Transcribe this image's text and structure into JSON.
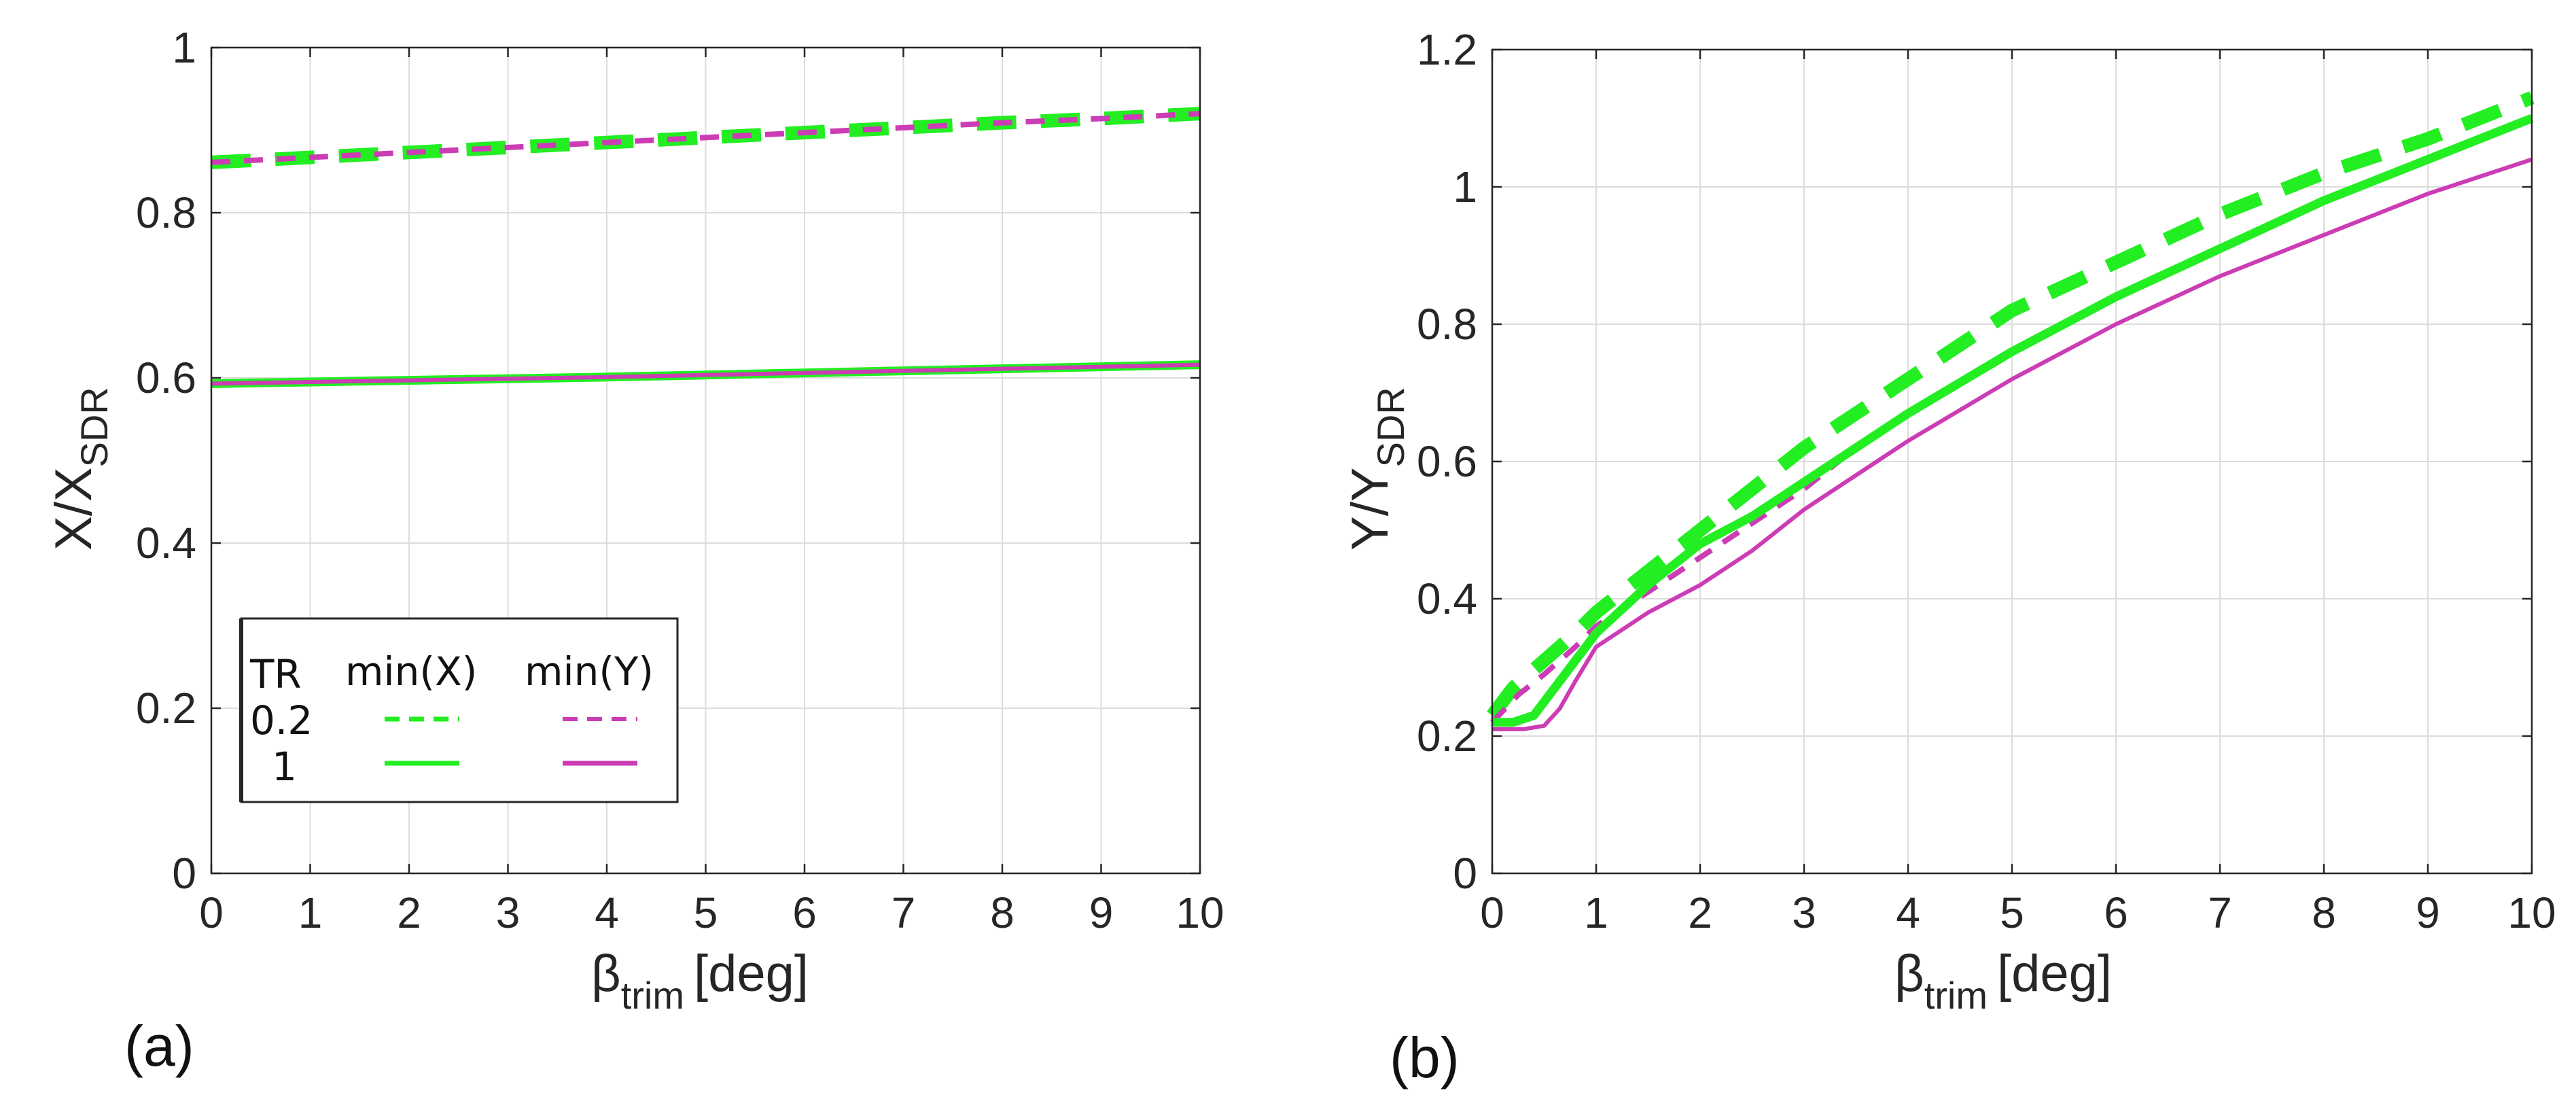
{
  "colors": {
    "green": "#22ee22",
    "magenta": "#cc3cb4"
  },
  "legend": {
    "header_tr": "TR",
    "header_minx": "min(X)",
    "header_miny": "min(Y)",
    "row1": "0.2",
    "row2": "1"
  },
  "chart_data": [
    {
      "type": "line",
      "panel_label": "(a)",
      "xlabel_main": "β",
      "xlabel_sub": "trim",
      "xlabel_unit": "[deg]",
      "ylabel_main": "X/X",
      "ylabel_sub": "SDR",
      "xlim": [
        0,
        10
      ],
      "ylim": [
        0,
        1
      ],
      "xticks": [
        0,
        1,
        2,
        3,
        4,
        5,
        6,
        7,
        8,
        9,
        10
      ],
      "yticks": [
        0,
        0.2,
        0.4,
        0.6,
        0.8,
        1
      ],
      "ytick_labels": [
        "0",
        "0.2",
        "0.4",
        "0.6",
        "0.8",
        "1"
      ],
      "grid": true,
      "legend_position": "bottom-left",
      "series": [
        {
          "name": "TR 0.2 min(X)",
          "style": "dashed-thick",
          "color": "green",
          "x": [
            0,
            1,
            2,
            3,
            4,
            5,
            6,
            7,
            8,
            9,
            10
          ],
          "y": [
            0.861,
            0.867,
            0.873,
            0.879,
            0.885,
            0.891,
            0.897,
            0.903,
            0.909,
            0.914,
            0.92
          ]
        },
        {
          "name": "TR 0.2 min(Y)",
          "style": "dashed-thin",
          "color": "magenta",
          "x": [
            0,
            1,
            2,
            3,
            4,
            5,
            6,
            7,
            8,
            9,
            10
          ],
          "y": [
            0.861,
            0.867,
            0.873,
            0.879,
            0.885,
            0.891,
            0.897,
            0.903,
            0.909,
            0.914,
            0.92
          ]
        },
        {
          "name": "TR 1 min(X)",
          "style": "solid-thick",
          "color": "green",
          "x": [
            0,
            2,
            4,
            6,
            8,
            10
          ],
          "y": [
            0.593,
            0.597,
            0.601,
            0.606,
            0.611,
            0.616
          ]
        },
        {
          "name": "TR 1 min(Y)",
          "style": "solid-thin",
          "color": "magenta",
          "x": [
            0,
            2,
            4,
            6,
            8,
            10
          ],
          "y": [
            0.593,
            0.597,
            0.601,
            0.606,
            0.611,
            0.616
          ]
        }
      ]
    },
    {
      "type": "line",
      "panel_label": "(b)",
      "xlabel_main": "β",
      "xlabel_sub": "trim",
      "xlabel_unit": "[deg]",
      "ylabel_main": "Y/Y",
      "ylabel_sub": "SDR",
      "xlim": [
        0,
        10
      ],
      "ylim": [
        0,
        1.2
      ],
      "xticks": [
        0,
        1,
        2,
        3,
        4,
        5,
        6,
        7,
        8,
        9,
        10
      ],
      "yticks": [
        0,
        0.2,
        0.4,
        0.6,
        0.8,
        1,
        1.2
      ],
      "ytick_labels": [
        "0",
        "0.2",
        "0.4",
        "0.6",
        "0.8",
        "1",
        "1.2"
      ],
      "grid": true,
      "series": [
        {
          "name": "TR 0.2 min(X)",
          "style": "dashed-thick",
          "color": "green",
          "x": [
            0,
            0.2,
            0.5,
            0.8,
            1,
            1.5,
            2,
            3,
            4,
            5,
            6,
            7,
            8,
            9,
            10
          ],
          "y": [
            0.23,
            0.27,
            0.31,
            0.35,
            0.38,
            0.44,
            0.5,
            0.62,
            0.72,
            0.82,
            0.89,
            0.96,
            1.02,
            1.07,
            1.13
          ]
        },
        {
          "name": "TR 0.2 min(Y)",
          "style": "dashed-thin",
          "color": "magenta",
          "x": [
            0,
            0.25,
            0.5,
            0.8,
            1,
            1.5,
            2,
            2.5,
            3,
            3.5,
            4,
            5,
            6,
            7,
            8,
            9,
            10
          ],
          "y": [
            0.22,
            0.26,
            0.29,
            0.33,
            0.36,
            0.41,
            0.46,
            0.51,
            0.56,
            0.62,
            0.67,
            0.76,
            0.84,
            0.91,
            0.98,
            1.04,
            1.1
          ]
        },
        {
          "name": "TR 1 min(X)",
          "style": "solid-thick",
          "color": "green",
          "x": [
            0,
            0.2,
            0.4,
            0.6,
            0.8,
            1,
            1.5,
            2,
            2.5,
            3,
            4,
            5,
            6,
            7,
            8,
            9,
            10
          ],
          "y": [
            0.22,
            0.22,
            0.23,
            0.27,
            0.31,
            0.35,
            0.42,
            0.48,
            0.52,
            0.57,
            0.67,
            0.76,
            0.84,
            0.91,
            0.98,
            1.04,
            1.1
          ]
        },
        {
          "name": "TR 1 min(Y)",
          "style": "solid-thin",
          "color": "magenta",
          "x": [
            0,
            0.3,
            0.5,
            0.65,
            0.8,
            1,
            1.5,
            2,
            2.5,
            3,
            4,
            5,
            6,
            7,
            8,
            9,
            10
          ],
          "y": [
            0.21,
            0.21,
            0.215,
            0.24,
            0.28,
            0.33,
            0.38,
            0.42,
            0.47,
            0.53,
            0.63,
            0.72,
            0.8,
            0.87,
            0.93,
            0.99,
            1.04
          ]
        }
      ]
    }
  ]
}
